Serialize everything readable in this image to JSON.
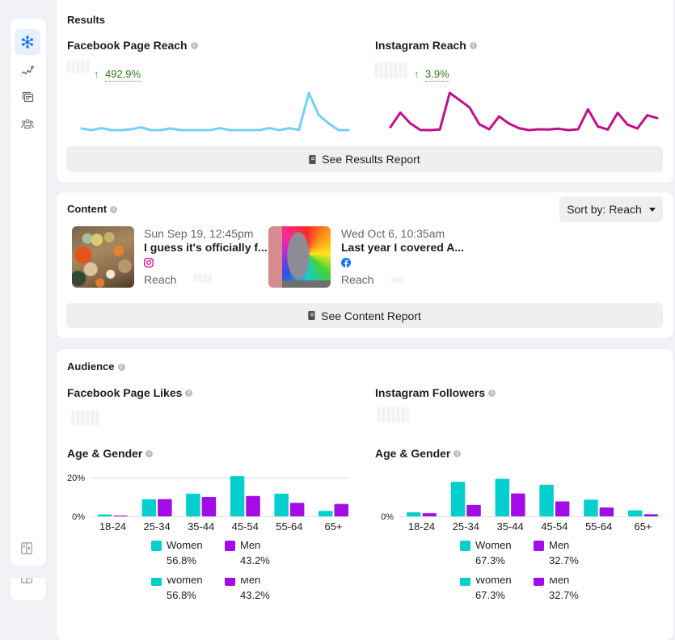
{
  "sidebar": {
    "items": [
      {
        "icon": "hub-icon",
        "active": true
      },
      {
        "icon": "trend-line-icon",
        "active": false
      },
      {
        "icon": "content-cards-icon",
        "active": false
      },
      {
        "icon": "audience-icon",
        "active": false
      }
    ],
    "footer_icon": "collapse-panel-icon"
  },
  "results": {
    "title": "Results",
    "facebook": {
      "change": "492.9%",
      "trend": "up"
    },
    "instagram": {
      "change": "3.9%",
      "trend": "up"
    },
    "report_button": "See Results Report"
  },
  "content": {
    "title": "Content",
    "sort_label": "Sort by: Reach",
    "posts": [
      {
        "date": "Sun Sep 19, 12:45pm",
        "title": "I guess it's officially f...",
        "platform": "instagram",
        "metric_label": "Reach"
      },
      {
        "date": "Wed Oct 6, 10:35am",
        "title": "Last year I covered A...",
        "platform": "facebook",
        "metric_label": "Reach"
      }
    ],
    "report_button": "See Content Report"
  },
  "audience": {
    "title": "Audience",
    "facebook_label": "Facebook Page Likes",
    "instagram_label": "Instagram Followers"
  },
  "colors": {
    "accent": "#1877f2",
    "positive": "#42a83a",
    "facebook_line": "#74d0f8",
    "instagram_line": "#c2108a",
    "women": "#03cfcd",
    "men": "#a30ce6"
  },
  "chart_data": [
    {
      "type": "line",
      "title": "Facebook Page Reach",
      "color": "#74d0f8",
      "values": [
        6,
        0,
        7,
        0,
        0,
        3,
        10,
        0,
        0,
        6,
        0,
        0,
        0,
        0,
        7,
        0,
        0,
        0,
        0,
        7,
        0,
        7,
        1,
        137,
        55,
        25,
        0,
        0
      ]
    },
    {
      "type": "line",
      "title": "Instagram Reach",
      "color": "#c2108a",
      "values": [
        11,
        64,
        25,
        1,
        0,
        2,
        136,
        110,
        83,
        21,
        3,
        50,
        24,
        7,
        0,
        3,
        2,
        5,
        0,
        3,
        76,
        13,
        2,
        63,
        20,
        6,
        54,
        44
      ]
    },
    {
      "type": "bar",
      "title": "Age & Gender",
      "categories": [
        "18-24",
        "25-34",
        "35-44",
        "45-54",
        "55-64",
        "65+"
      ],
      "series": [
        {
          "name": "Women",
          "color": "#03cfcd",
          "values": [
            1.0,
            8.8,
            11.7,
            20.8,
            11.7,
            2.8
          ],
          "total": "56.8%"
        },
        {
          "name": "Men",
          "color": "#a30ce6",
          "values": [
            0.4,
            8.9,
            10.0,
            10.5,
            7.0,
            6.4
          ],
          "total": "43.2%"
        }
      ],
      "ylim": [
        0,
        20
      ],
      "yticks": [
        {
          "value": 20,
          "label": "20%"
        },
        {
          "value": 0,
          "label": "0%"
        }
      ],
      "grid": true,
      "legend": "bottom"
    },
    {
      "type": "bar",
      "title": "Age & Gender",
      "categories": [
        "18-24",
        "25-34",
        "35-44",
        "45-54",
        "55-64",
        "65+"
      ],
      "series": [
        {
          "name": "Women",
          "color": "#03cfcd",
          "values": [
            2.1,
            17.8,
            19.4,
            16.3,
            8.6,
            3.1
          ],
          "total": "67.3%"
        },
        {
          "name": "Men",
          "color": "#a30ce6",
          "values": [
            1.6,
            5.9,
            11.8,
            7.7,
            4.6,
            1.1
          ],
          "total": "32.7%"
        }
      ],
      "ylim": [
        0,
        20
      ],
      "yticks": [
        {
          "value": 0,
          "label": "0%"
        }
      ],
      "grid": true,
      "legend": "bottom"
    }
  ]
}
